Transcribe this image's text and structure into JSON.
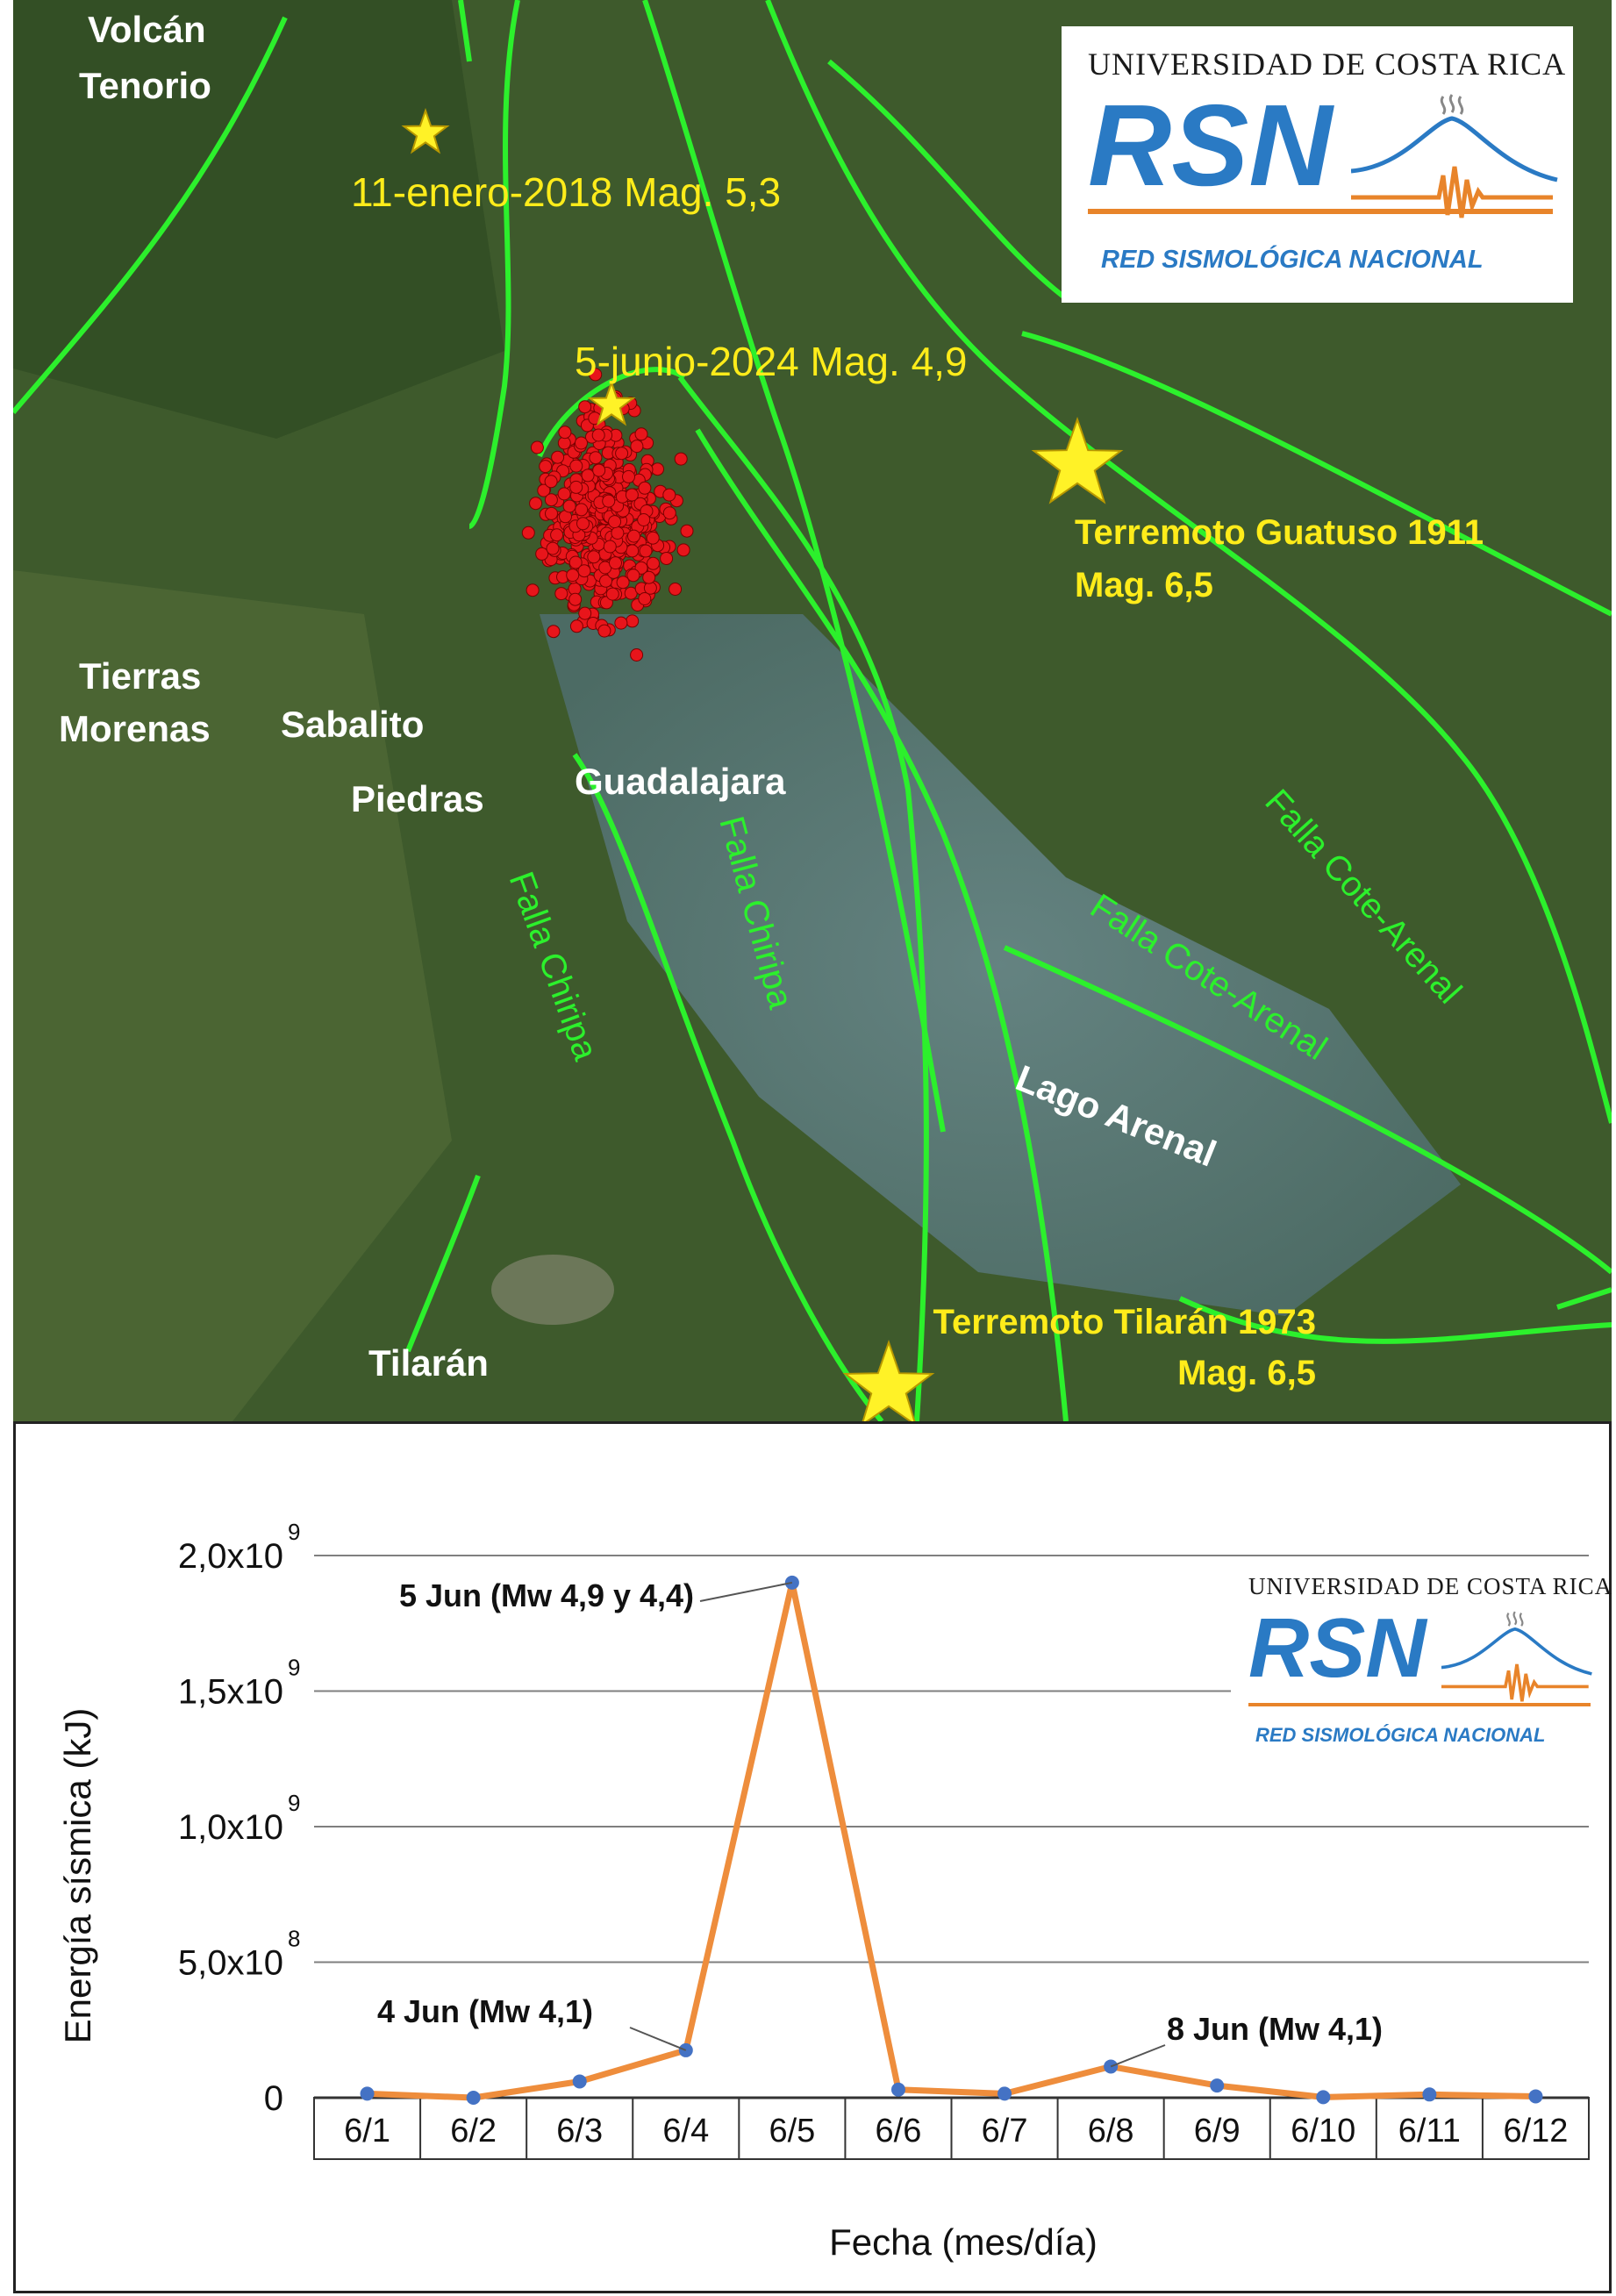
{
  "map": {
    "places": [
      {
        "name": "Volcán",
        "key": "volcan1"
      },
      {
        "name": "Tenorio",
        "key": "volcan2"
      },
      {
        "name": "Tierras",
        "key": "tierras1"
      },
      {
        "name": "Morenas",
        "key": "tierras2"
      },
      {
        "name": "Sabalito",
        "key": "sabalito"
      },
      {
        "name": "Piedras",
        "key": "piedras"
      },
      {
        "name": "Guadalajara",
        "key": "guadalajara"
      },
      {
        "name": "Tilarán",
        "key": "tilaran"
      },
      {
        "name": "Lago Arenal",
        "key": "lago"
      }
    ],
    "events": {
      "e2018": "11-enero-2018 Mag. 5,3",
      "e2024": "5-junio-2024 Mag. 4,9",
      "guatuso_title": "Terremoto Guatuso 1911",
      "guatuso_mag": "Mag. 6,5",
      "tilaran_title": "Terremoto Tilarán 1973",
      "tilaran_mag": "Mag. 6,5"
    },
    "faults": {
      "chiripa_1": "Falla Chiripa",
      "chiripa_2": "Falla Chiripa",
      "cote_1": "Falla Cote-Arenal",
      "cote_2": "Falla Cote-Arenal"
    },
    "colors": {
      "fault": "#2cf02c",
      "epicenter": "#e8151b",
      "star": "#fff227",
      "terrain": "#3e5a2c",
      "lake": "#5c7a80"
    }
  },
  "logo": {
    "university": "UNIVERSIDAD DE COSTA RICA",
    "acronym": "RSN",
    "network": "RED SISMOLÓGICA NACIONAL",
    "colors": {
      "blue": "#2a7ac4",
      "orange": "#e8842a"
    }
  },
  "chart_data": {
    "type": "line",
    "ylabel": "Energía sísmica (kJ)",
    "xlabel": "Fecha (mes/día)",
    "categories": [
      "6/1",
      "6/2",
      "6/3",
      "6/4",
      "6/5",
      "6/6",
      "6/7",
      "6/8",
      "6/9",
      "6/10",
      "6/11",
      "6/12"
    ],
    "series": [
      {
        "values": [
          15000000.0,
          0,
          60000000.0,
          175000000.0,
          1900000000.0,
          30000000.0,
          15000000.0,
          115000000.0,
          45000000.0,
          2000000.0,
          12000000.0,
          5000000.0
        ],
        "color": "#ee8d3c"
      }
    ],
    "ylim": [
      0,
      2000000000.0
    ],
    "yticks": [
      {
        "value": 0,
        "label": "0",
        "exp": ""
      },
      {
        "value": 500000000.0,
        "label": "5,0x10",
        "exp": "8"
      },
      {
        "value": 1000000000.0,
        "label": "1,0x10",
        "exp": "9"
      },
      {
        "value": 1500000000.0,
        "label": "1,5x10",
        "exp": "9"
      },
      {
        "value": 2000000000.0,
        "label": "2,0x10",
        "exp": "9"
      }
    ],
    "annotations": [
      {
        "text": "5 Jun (Mw 4,9 y 4,4)",
        "index": 4
      },
      {
        "text": "4 Jun (Mw 4,1)",
        "index": 3
      },
      {
        "text": "8 Jun (Mw 4,1)",
        "index": 7
      }
    ],
    "grid": true,
    "marker_color": "#4472c4"
  }
}
